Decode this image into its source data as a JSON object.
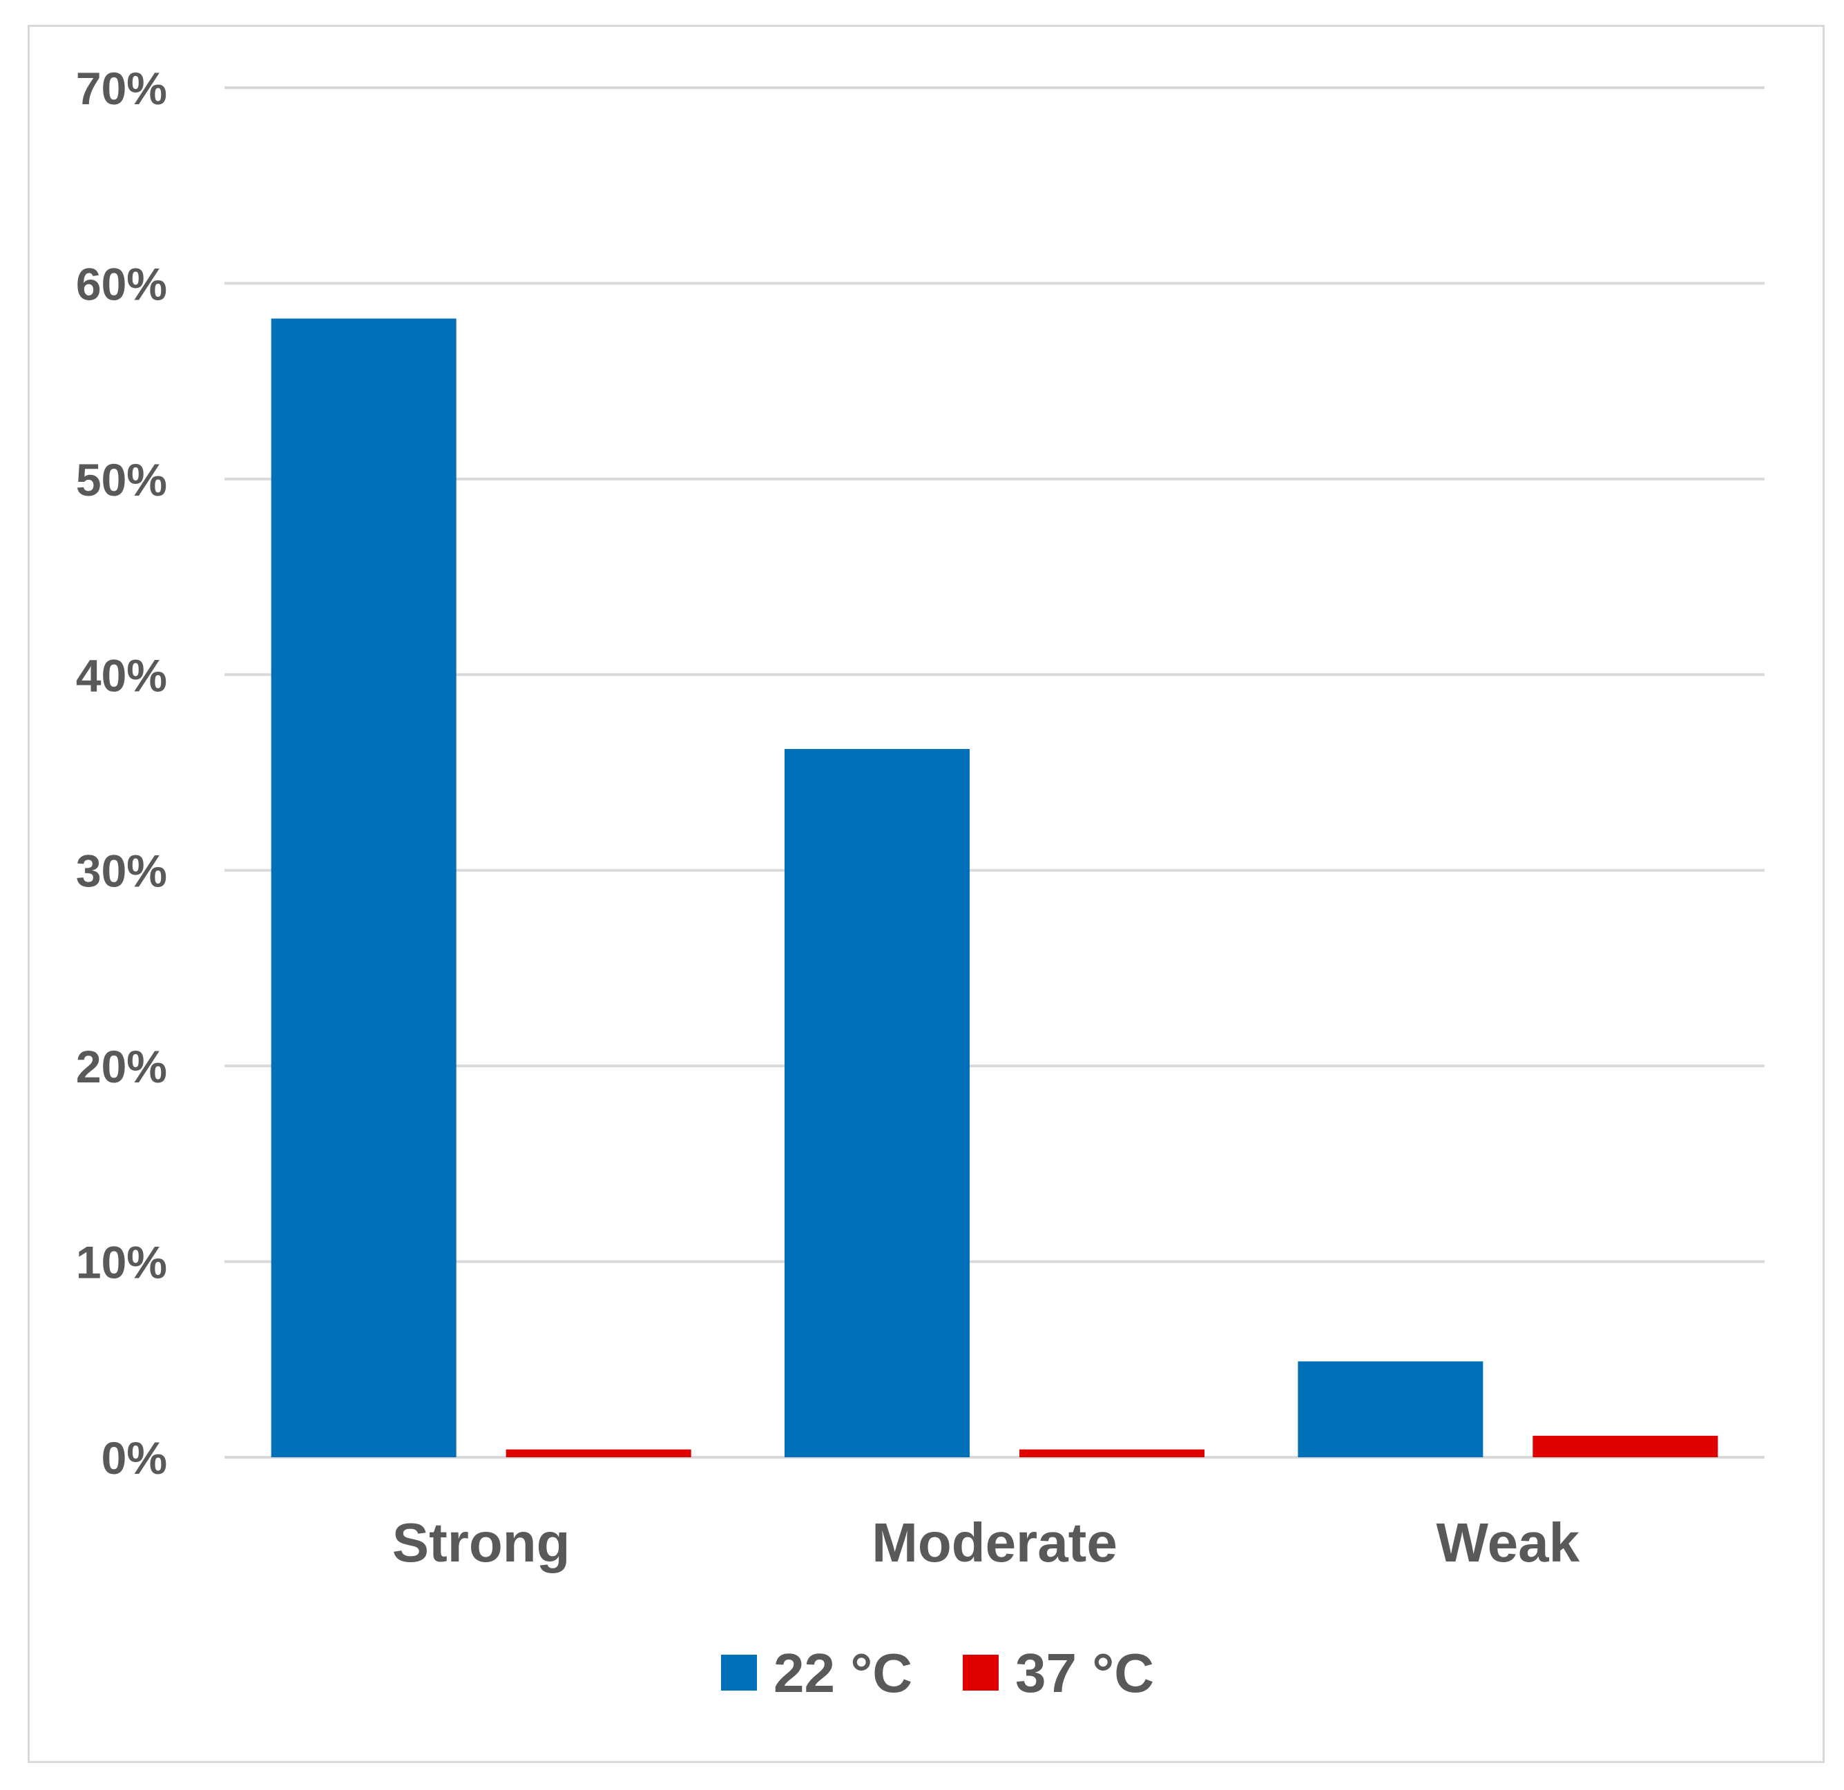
{
  "chart_data": {
    "type": "bar",
    "title": "",
    "xlabel": "",
    "ylabel": "",
    "categories": [
      "Strong",
      "Moderate",
      "Weak"
    ],
    "series": [
      {
        "name": "22 °C",
        "color": "#0070b8",
        "values": [
          58.2,
          36.2,
          4.9
        ]
      },
      {
        "name": "37 °C",
        "color": "#e00000",
        "values": [
          0.4,
          0.4,
          1.1
        ]
      }
    ],
    "ylim": [
      0,
      70
    ],
    "yticks": [
      0,
      10,
      20,
      30,
      40,
      50,
      60,
      70
    ],
    "ytick_labels": [
      "0%",
      "10%",
      "20%",
      "30%",
      "40%",
      "50%",
      "60%",
      "70%"
    ],
    "grid": true,
    "legend_position": "bottom"
  }
}
